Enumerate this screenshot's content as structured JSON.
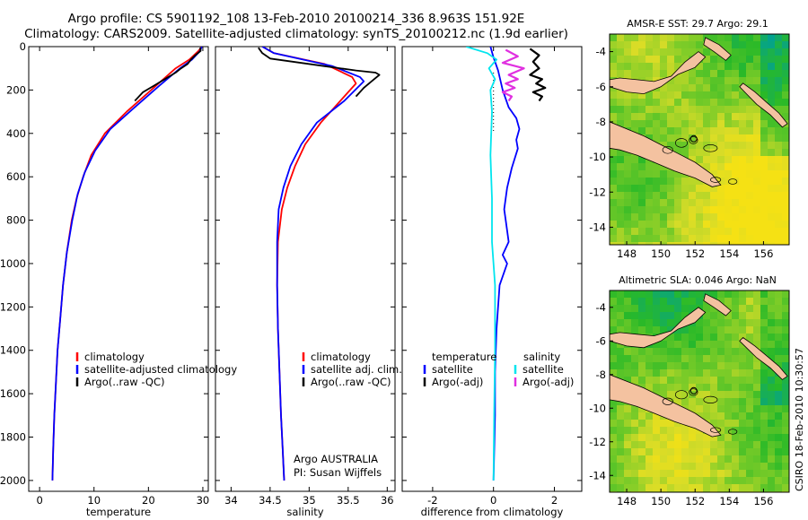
{
  "header": {
    "title_line1": "Argo profile: CS 5901192_108 13-Feb-2010 20100214_336 8.963S 151.92E",
    "title_line2": "Climatology: CARS2009. Satellite-adjusted climatology: synTS_20100212.nc (1.9d earlier)"
  },
  "side_stamp": "CSIRO 18-Feb-2010 10:30:57",
  "colors": {
    "climatology": "#ff0000",
    "satellite": "#0000ff",
    "argo": "#000000",
    "sal_satellite": "#00e5ee",
    "sal_argo": "#e030e0",
    "land": "#f4c2a0"
  },
  "chart_data": [
    {
      "type": "line",
      "panel": "temperature",
      "xlabel": "temperature",
      "xlim": [
        -2,
        31
      ],
      "ylim": [
        2050,
        0
      ],
      "xticks": [
        0,
        10,
        20,
        30
      ],
      "yticks": [
        0,
        200,
        400,
        600,
        800,
        1000,
        1200,
        1400,
        1600,
        1800,
        2000
      ],
      "y_inverted": true,
      "legend": {
        "placement": "lower-center",
        "labels": [
          "climatology",
          "satellite-adjusted climatology",
          "Argo(..raw -QC)"
        ]
      },
      "series": [
        {
          "name": "climatology",
          "color": "#ff0000",
          "x": [
            29.8,
            29.2,
            27.5,
            25.0,
            20.5,
            16.0,
            12.0,
            9.5,
            8.0,
            6.8,
            5.9,
            5.0,
            4.3,
            3.8,
            3.3,
            3.0,
            2.7,
            2.5,
            2.35
          ],
          "y": [
            0,
            20,
            60,
            100,
            200,
            300,
            400,
            500,
            600,
            700,
            800,
            950,
            1100,
            1250,
            1400,
            1550,
            1700,
            1850,
            2000
          ]
        },
        {
          "name": "satellite-adjusted climatology",
          "color": "#0000ff",
          "x": [
            29.8,
            29.5,
            28.0,
            25.8,
            22.0,
            17.0,
            13.0,
            10.2,
            8.3,
            7.0,
            6.0,
            5.0,
            4.3,
            3.8,
            3.3,
            3.0,
            2.7,
            2.5,
            2.35
          ],
          "y": [
            0,
            20,
            60,
            100,
            180,
            290,
            380,
            480,
            580,
            680,
            800,
            950,
            1100,
            1250,
            1400,
            1550,
            1700,
            1850,
            2000
          ]
        },
        {
          "name": "Argo(..raw -QC)",
          "color": "#000000",
          "x": [
            29.5,
            29.6,
            28.6,
            27.8,
            27.2,
            26.0,
            25.0,
            23.0,
            21.0,
            19.0,
            17.5
          ],
          "y": [
            5,
            20,
            40,
            60,
            80,
            100,
            120,
            150,
            180,
            210,
            250
          ]
        }
      ]
    },
    {
      "type": "line",
      "panel": "salinity",
      "xlabel": "salinity",
      "xlim": [
        33.8,
        36.1
      ],
      "ylim": [
        2050,
        0
      ],
      "xticks": [
        34,
        34.5,
        35,
        35.5,
        36
      ],
      "yticks": [],
      "y_inverted": true,
      "legend": {
        "placement": "lower-center",
        "labels": [
          "climatology",
          "satellite adj. clim.",
          "Argo(..raw -QC)"
        ]
      },
      "annotations": [
        "Argo AUSTRALIA",
        "PI: Susan Wijffels"
      ],
      "series": [
        {
          "name": "climatology",
          "color": "#ff0000",
          "x": [
            34.4,
            34.55,
            35.2,
            35.55,
            35.6,
            35.4,
            35.15,
            34.95,
            34.82,
            34.72,
            34.65,
            34.6,
            34.59,
            34.6,
            34.62,
            34.64,
            34.66,
            34.68
          ],
          "y": [
            0,
            30,
            80,
            140,
            170,
            250,
            350,
            450,
            550,
            650,
            750,
            900,
            1100,
            1300,
            1500,
            1700,
            1850,
            2000
          ]
        },
        {
          "name": "satellite adj. clim.",
          "color": "#0000ff",
          "x": [
            34.4,
            34.55,
            35.3,
            35.65,
            35.7,
            35.45,
            35.1,
            34.9,
            34.76,
            34.67,
            34.61,
            34.59,
            34.59,
            34.6,
            34.62,
            34.64,
            34.66,
            34.68
          ],
          "y": [
            0,
            30,
            90,
            140,
            160,
            250,
            350,
            450,
            550,
            650,
            750,
            900,
            1100,
            1300,
            1500,
            1700,
            1850,
            2000
          ]
        },
        {
          "name": "Argo(..raw -QC)",
          "color": "#000000",
          "x": [
            34.35,
            34.4,
            34.5,
            35.2,
            35.6,
            35.85,
            35.9,
            35.8,
            35.7,
            35.6
          ],
          "y": [
            5,
            30,
            55,
            90,
            110,
            120,
            130,
            160,
            190,
            230
          ]
        }
      ]
    },
    {
      "type": "line",
      "panel": "difference",
      "xlabel": "difference from climatology",
      "xlim": [
        -3.0,
        2.9
      ],
      "ylim": [
        2050,
        0
      ],
      "xticks": [
        -2,
        0,
        2
      ],
      "yticks": [],
      "y_inverted": true,
      "legend": {
        "placement": "lower-center",
        "labels": [
          "temperature",
          "satellite",
          "Argo(-adj)",
          "salinity",
          "satellite",
          "Argo(-adj)"
        ]
      },
      "series": [
        {
          "name": "temperature satellite",
          "color": "#0000ff",
          "x": [
            -0.1,
            0.0,
            0.15,
            0.3,
            0.5,
            0.75,
            0.85,
            0.75,
            0.8,
            0.6,
            0.45,
            0.35,
            0.4,
            0.5,
            0.3,
            0.45,
            0.2,
            0.1,
            0.05,
            0.05,
            0.0
          ],
          "y": [
            0,
            50,
            110,
            200,
            280,
            330,
            380,
            430,
            470,
            560,
            650,
            750,
            800,
            900,
            960,
            1000,
            1100,
            1300,
            1500,
            1700,
            2000
          ]
        },
        {
          "name": "temperature Argo(-adj)",
          "color": "#000000",
          "x": [
            1.2,
            1.5,
            1.3,
            1.5,
            1.2,
            1.6,
            1.4,
            1.7,
            1.3,
            1.6,
            1.5
          ],
          "y": [
            10,
            40,
            70,
            100,
            130,
            150,
            170,
            190,
            210,
            230,
            250
          ]
        },
        {
          "name": "salinity satellite",
          "color": "#00e5ee",
          "x": [
            -0.9,
            -0.2,
            0.1,
            -0.15,
            0.05,
            -0.1,
            -0.05,
            -0.1,
            -0.05,
            -0.05,
            0.05,
            0.05,
            0.02,
            0.0
          ],
          "y": [
            0,
            30,
            60,
            100,
            150,
            200,
            300,
            500,
            700,
            900,
            1100,
            1400,
            1700,
            2000
          ]
        },
        {
          "name": "salinity Argo(-adj)",
          "color": "#e030e0",
          "x": [
            0.4,
            0.8,
            0.3,
            1.0,
            0.5,
            0.8,
            0.4,
            0.7,
            0.3,
            0.6,
            0.5
          ],
          "y": [
            15,
            45,
            75,
            100,
            130,
            150,
            170,
            190,
            210,
            230,
            250
          ]
        }
      ]
    },
    {
      "type": "heatmap",
      "panel": "map-sst",
      "title": "AMSR-E SST: 29.7 Argo: 29.1",
      "xlim": [
        147.0,
        157.5
      ],
      "ylim": [
        -15,
        -3
      ],
      "xticks": [
        148,
        150,
        152,
        154,
        156
      ],
      "yticks": [
        -4,
        -6,
        -8,
        -10,
        -12,
        -14
      ],
      "marker": {
        "x": 151.92,
        "y": -8.963
      }
    },
    {
      "type": "heatmap",
      "panel": "map-sla",
      "title": "Altimetric SLA: 0.046 Argo: NaN",
      "xlim": [
        147.0,
        157.5
      ],
      "ylim": [
        -15,
        -3
      ],
      "xticks": [
        148,
        150,
        152,
        154,
        156
      ],
      "yticks": [
        -4,
        -6,
        -8,
        -10,
        -12,
        -14
      ],
      "marker": {
        "x": 151.92,
        "y": -8.963
      }
    }
  ]
}
